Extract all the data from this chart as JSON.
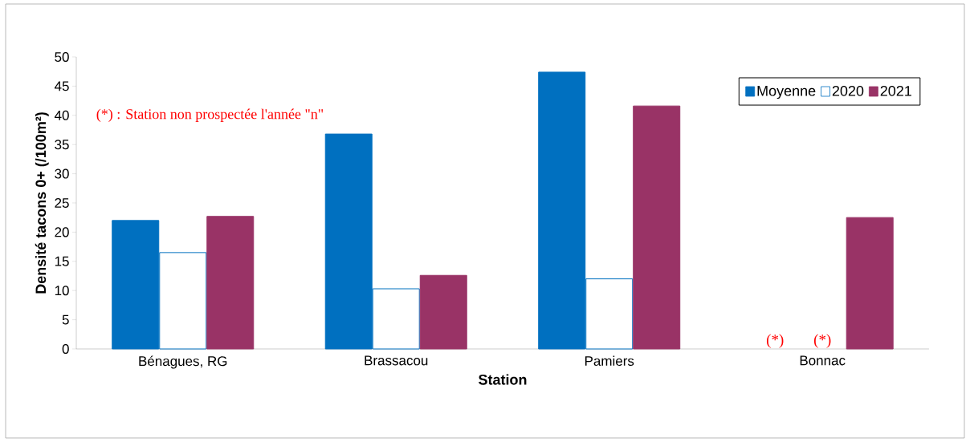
{
  "chart_data": {
    "type": "bar",
    "xlabel": "Station",
    "ylabel": "Densité tacons 0+ (/100m²)",
    "categories": [
      "Bénagues, RG",
      "Brassacou",
      "Pamiers",
      "Bonnac"
    ],
    "series": [
      {
        "name": "Moyenne",
        "color": "#0070c0",
        "values": [
          22.0,
          36.8,
          47.4,
          null
        ]
      },
      {
        "name": "2020",
        "color": "#0070c0",
        "line_style": "solid",
        "values": [
          16.5,
          10.3,
          12.0,
          null
        ]
      },
      {
        "name": "2021",
        "color": "#993366",
        "values": [
          22.7,
          12.6,
          41.6,
          22.5
        ]
      }
    ],
    "ylim": [
      0,
      50
    ],
    "yticks": [
      0,
      5,
      10,
      15,
      20,
      25,
      30,
      35,
      40,
      45,
      50
    ],
    "grid": false,
    "legend": "top right",
    "annotations": [
      "(*) : Station non prospectée l'année \"n\"",
      "(*)",
      "(*)"
    ]
  }
}
